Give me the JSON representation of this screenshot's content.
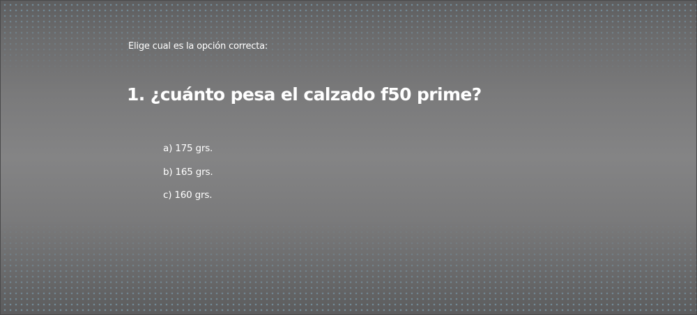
{
  "quiz": {
    "instruction": "Elige cual es la opción correcta:",
    "question": "1. ¿cuánto pesa el calzado f50 prime?",
    "options": [
      {
        "label": "a) 175 grs."
      },
      {
        "label": "b) 165 grs."
      },
      {
        "label": "c) 160 grs."
      }
    ]
  },
  "colors": {
    "text": "#ffffff",
    "dots": "#7896a5"
  }
}
